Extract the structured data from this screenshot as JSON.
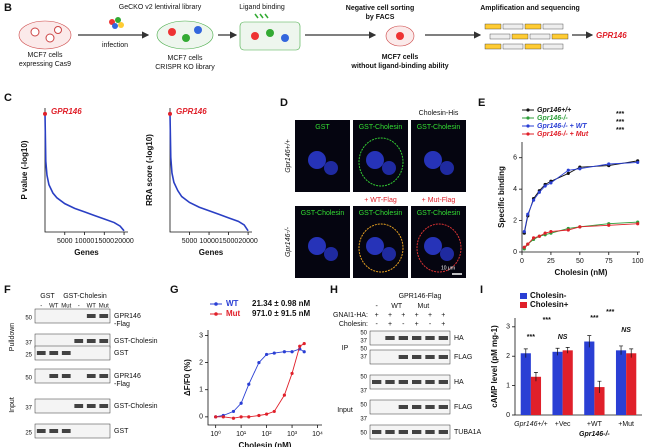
{
  "panel_labels": [
    "B",
    "C",
    "D",
    "E",
    "F",
    "G",
    "H",
    "I"
  ],
  "panel_b": {
    "library": "GeCKO v2 lentiviral library",
    "infection": "infection",
    "start_cells": [
      "MCF7 cells",
      "expressing Cas9"
    ],
    "ligand_binding": "Ligand binding",
    "ko_library": [
      "MCF7 cells",
      "CRISPR KO library"
    ],
    "sorting": [
      "Negative cell sorting",
      "by FACS"
    ],
    "sorted_cells": [
      "MCF7 cells",
      "without ligand-binding ability"
    ],
    "sequencing": "Amplification and sequencing",
    "hit": "GPR146"
  },
  "panel_d": {
    "top_headers": [
      "GST",
      "GST-Cholesin",
      "GST-Cholesin"
    ],
    "top_extra": "Cholesin-His",
    "row_labels": [
      "Gpr146+/+",
      "Gpr146-/-"
    ],
    "bottom_headers": [
      "GST-Cholesin",
      "GST-Cholesin",
      "GST-Cholesin"
    ],
    "bottom_extras": [
      "+ WT-Flag",
      "+ Mut-Flag"
    ],
    "scale_bar": "10 μm"
  },
  "panel_f": {
    "groups": [
      "GST",
      "GST-Cholesin"
    ],
    "lanes": [
      "-",
      "WT",
      "Mut",
      "-",
      "WT",
      "Mut"
    ],
    "sections": [
      "Pulldown",
      "Input"
    ],
    "pulldown_bands": [
      "GPR146",
      "-Flag",
      "GST-Cholesin",
      "GST"
    ],
    "input_bands": [
      "GPR146",
      "-Flag",
      "GST-Cholesin",
      "GST"
    ],
    "pulldown_markers": [
      "50",
      "37",
      "25"
    ],
    "input_markers": [
      "50",
      "37",
      "25"
    ]
  },
  "panel_h": {
    "title": "GPR146-Flag",
    "lane_groups": [
      "-",
      "WT",
      "Mut"
    ],
    "rows": [
      {
        "label": "GNAI1-HA:",
        "signs": [
          "+",
          "+",
          "+",
          "+",
          "+",
          "+"
        ]
      },
      {
        "label": "Cholesin:",
        "signs": [
          "-",
          "+",
          "-",
          "+",
          "-",
          "+"
        ]
      }
    ],
    "sections": [
      "IP",
      "Input"
    ],
    "ip_bands": [
      "HA",
      "FLAG"
    ],
    "input_bands": [
      "HA",
      "FLAG",
      "TUBA1A"
    ],
    "ip_markers": [
      "50",
      "37",
      "50",
      "37"
    ],
    "input_markers": [
      "50",
      "37",
      "50",
      "37",
      "50"
    ]
  },
  "chart_data": [
    {
      "type": "line",
      "ylabel": "P value (-log10)",
      "xlabel": "Genes",
      "color": "#2a3fc4",
      "annotations": [
        "GPR146"
      ],
      "annotation_color": "#e0202a",
      "x": [
        1,
        200,
        500,
        1000,
        2000,
        3000,
        5000,
        7500,
        10000,
        12500,
        15000,
        17500,
        19000,
        20000
      ],
      "values": [
        10,
        6,
        4.8,
        4,
        3.3,
        2.9,
        2.4,
        2,
        1.7,
        1.4,
        1.1,
        0.8,
        0.5,
        0.1
      ],
      "xlim": [
        0,
        21000
      ],
      "ylim": [
        0,
        10.5
      ],
      "xticks": [
        5000,
        10000,
        15000,
        20000
      ]
    },
    {
      "type": "line",
      "ylabel": "RRA score (-log10)",
      "xlabel": "Genes",
      "color": "#2a3fc4",
      "annotations": [
        "GPR146"
      ],
      "annotation_color": "#e0202a",
      "x": [
        1,
        200,
        500,
        1000,
        2000,
        3000,
        5000,
        7500,
        10000,
        12500,
        15000,
        17500,
        19000,
        20000
      ],
      "values": [
        10,
        6.3,
        5,
        4.2,
        3.5,
        3,
        2.5,
        2.1,
        1.8,
        1.5,
        1.2,
        0.9,
        0.6,
        0.1
      ],
      "xlim": [
        0,
        21000
      ],
      "ylim": [
        0,
        10.5
      ],
      "xticks": [
        5000,
        10000,
        15000,
        20000
      ]
    },
    {
      "type": "line",
      "xlabel": "Cholesin (nM)",
      "ylabel": "Specific binding",
      "annotations": [
        "***",
        "***",
        "***"
      ],
      "x": [
        2,
        5,
        10,
        15,
        20,
        25,
        40,
        50,
        75,
        100
      ],
      "series": [
        {
          "name": "Gpr146+/+",
          "color": "#111111",
          "values": [
            1.2,
            2.3,
            3.4,
            3.9,
            4.3,
            4.5,
            5.0,
            5.4,
            5.5,
            5.8
          ]
        },
        {
          "name": "Gpr146-/-",
          "color": "#2e9e3a",
          "values": [
            0.2,
            0.5,
            0.8,
            1.0,
            1.1,
            1.2,
            1.5,
            1.6,
            1.8,
            1.9
          ]
        },
        {
          "name": "Gpr146-/- + WT",
          "color": "#2a3fd4",
          "values": [
            1.3,
            2.4,
            3.3,
            3.8,
            4.2,
            4.4,
            5.2,
            5.3,
            5.6,
            5.7
          ]
        },
        {
          "name": "Gpr146-/- + Mut",
          "color": "#e0202a",
          "values": [
            0.3,
            0.5,
            0.9,
            1.0,
            1.2,
            1.3,
            1.4,
            1.6,
            1.7,
            1.8
          ]
        }
      ],
      "xlim": [
        0,
        102
      ],
      "ylim": [
        0,
        7
      ],
      "xticks": [
        0,
        25,
        50,
        75,
        100
      ],
      "yticks": [
        0,
        2,
        4,
        6
      ]
    },
    {
      "type": "line",
      "xlabel": "Cholesin (nM)",
      "ylabel": "ΔF/F0 (%)",
      "xscale": "log",
      "x": [
        1,
        2,
        5,
        10,
        20,
        50,
        100,
        200,
        500,
        1000,
        2000,
        3000
      ],
      "series": [
        {
          "name": "WT",
          "color": "#2a3fd4",
          "values": [
            0,
            0.05,
            0.2,
            0.5,
            1.2,
            2.0,
            2.3,
            2.35,
            2.4,
            2.4,
            2.5,
            2.4
          ]
        },
        {
          "name": "Mut",
          "color": "#e0202a",
          "values": [
            0,
            0,
            -0.05,
            0,
            0,
            0.05,
            0.1,
            0.2,
            0.8,
            1.6,
            2.6,
            2.7
          ]
        }
      ],
      "legend_notes": [
        "21.34 ± 0.98 nM",
        "971.0 ± 91.5 nM"
      ],
      "xlim": [
        0.5,
        15000
      ],
      "ylim": [
        -0.3,
        3.2
      ],
      "xticks": [
        {
          "value": 1,
          "label": "10⁰"
        },
        {
          "value": 10,
          "label": "10¹"
        },
        {
          "value": 100,
          "label": "10²"
        },
        {
          "value": 1000,
          "label": "10³"
        },
        {
          "value": 10000,
          "label": "10⁴"
        }
      ],
      "yticks": [
        0,
        1,
        2,
        3
      ]
    },
    {
      "type": "bar",
      "ylabel": "cAMP level (pM mg-1)",
      "group_label": "Gpr146-/-",
      "categories": [
        "Gpr146+/+",
        "+Vec",
        "+WT",
        "+Mut"
      ],
      "series": [
        {
          "name": "Cholesin-",
          "color": "#2a3fd4",
          "values": [
            2.1,
            2.15,
            2.5,
            2.2
          ],
          "errors": [
            0.15,
            0.12,
            0.2,
            0.15
          ]
        },
        {
          "name": "Cholesin+",
          "color": "#e0202a",
          "values": [
            1.3,
            2.2,
            0.95,
            2.1
          ],
          "errors": [
            0.15,
            0.1,
            0.2,
            0.15
          ]
        }
      ],
      "annotations": [
        "***",
        "NS",
        "***",
        "***",
        "NS",
        "***"
      ],
      "ylim": [
        0,
        3.3
      ],
      "yticks": [
        0,
        1,
        2,
        3
      ]
    }
  ]
}
